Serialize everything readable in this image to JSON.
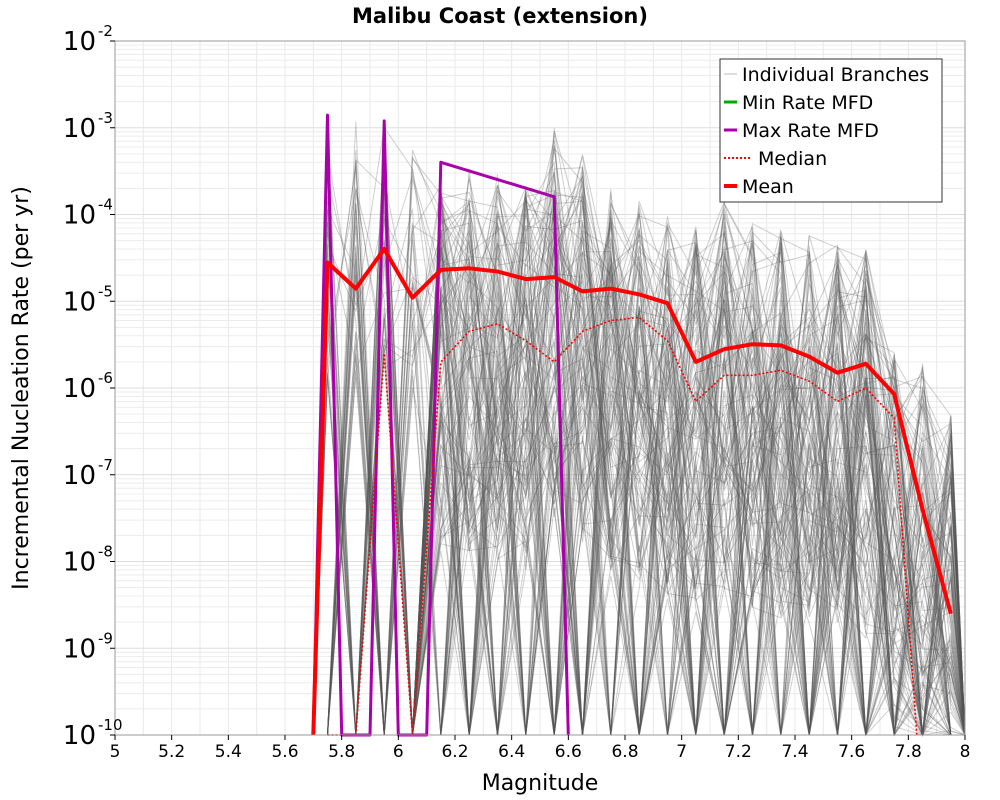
{
  "chart_data": {
    "type": "line",
    "title": "Malibu Coast (extension)",
    "xlabel": "Magnitude",
    "ylabel": "Incremental Nucleation Rate (per yr)",
    "xlim": [
      5,
      8
    ],
    "ylim": [
      1e-10,
      0.01
    ],
    "yscale": "log",
    "grid": true,
    "legend_position": "top-right",
    "x_ticks": [
      "5",
      "5.2",
      "5.4",
      "5.6",
      "5.8",
      "6",
      "6.2",
      "6.4",
      "6.6",
      "6.8",
      "7",
      "7.2",
      "7.4",
      "7.6",
      "7.8",
      "8"
    ],
    "y_tick_exponents": [
      "-10",
      "-9",
      "-8",
      "-7",
      "-6",
      "-5",
      "-4",
      "-3",
      "-2"
    ],
    "y_tick_base": "10",
    "series": [
      {
        "name": "Individual Branches",
        "color": "#555555",
        "style": "thin-gray-band",
        "x": [
          5.75,
          5.85,
          5.95,
          6.05,
          6.15,
          6.25,
          6.35,
          6.45,
          6.55,
          6.65,
          6.75,
          6.85,
          6.95,
          7.05,
          7.15,
          7.25,
          7.35,
          7.45,
          7.55,
          7.65,
          7.75,
          7.85,
          7.95
        ],
        "upper": [
          0.0012,
          0.0012,
          0.0011,
          0.0006,
          0.0004,
          0.00035,
          0.0003,
          0.00025,
          0.001,
          0.0005,
          0.0002,
          0.00015,
          0.0001,
          8e-05,
          0.00015,
          8e-05,
          7e-05,
          6e-05,
          5e-05,
          4e-05,
          3e-06,
          2e-06,
          5e-07
        ]
      },
      {
        "name": "Min Rate MFD",
        "color": "#00aa00",
        "x": [],
        "y": []
      },
      {
        "name": "Max Rate MFD",
        "color": "#aa00aa",
        "x": [
          5.7,
          5.75,
          5.8,
          5.9,
          5.95,
          6.0,
          6.1,
          6.15,
          6.55,
          6.6
        ],
        "y": [
          1e-10,
          0.0014,
          1e-10,
          1e-10,
          0.0012,
          1e-10,
          1e-10,
          0.0004,
          0.00016,
          1e-10
        ]
      },
      {
        "name": "Median",
        "color": "#ff0000",
        "style": "dotted",
        "x": [
          5.75,
          5.85,
          5.95,
          6.05,
          6.15,
          6.25,
          6.35,
          6.45,
          6.55,
          6.65,
          6.75,
          6.85,
          6.95,
          7.05,
          7.15,
          7.25,
          7.35,
          7.45,
          7.55,
          7.65,
          7.75,
          7.83
        ],
        "y": [
          1e-10,
          1e-10,
          2.5e-06,
          1e-10,
          2e-06,
          4.5e-06,
          5.5e-06,
          3.5e-06,
          2e-06,
          4.5e-06,
          6e-06,
          6.5e-06,
          3.5e-06,
          7e-07,
          1.4e-06,
          1.4e-06,
          1.6e-06,
          1.2e-06,
          7e-07,
          1e-06,
          4.5e-07,
          1e-10
        ]
      },
      {
        "name": "Mean",
        "color": "#ff0000",
        "x": [
          5.7,
          5.75,
          5.85,
          5.95,
          6.05,
          6.15,
          6.25,
          6.35,
          6.45,
          6.55,
          6.65,
          6.75,
          6.85,
          6.95,
          7.05,
          7.15,
          7.25,
          7.35,
          7.45,
          7.55,
          7.65,
          7.75,
          7.85,
          7.95
        ],
        "y": [
          1e-10,
          2.8e-05,
          1.4e-05,
          4e-05,
          1.1e-05,
          2.3e-05,
          2.4e-05,
          2.2e-05,
          1.8e-05,
          1.9e-05,
          1.3e-05,
          1.4e-05,
          1.2e-05,
          9.5e-06,
          2e-06,
          2.8e-06,
          3.2e-06,
          3.1e-06,
          2.3e-06,
          1.5e-06,
          1.9e-06,
          8.5e-07,
          4e-08,
          2.5e-09
        ]
      }
    ]
  }
}
